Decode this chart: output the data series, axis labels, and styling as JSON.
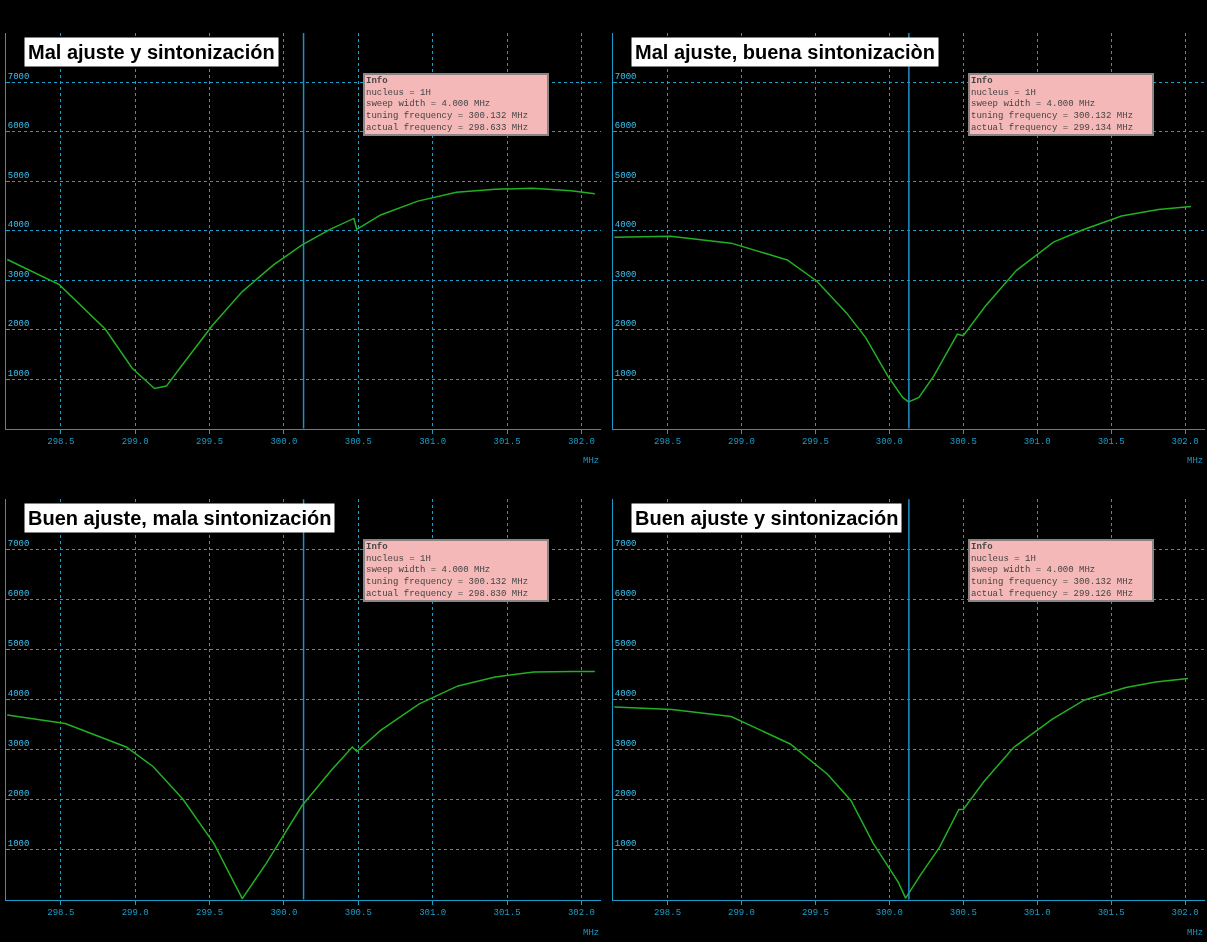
{
  "chart_data": [
    {
      "type": "line",
      "title": "Mal ajuste y sintonización",
      "xlabel": "MHz",
      "x": [
        298.14,
        298.49,
        298.8,
        298.98,
        299.13,
        299.21,
        299.31,
        299.52,
        299.72,
        299.93,
        300.12,
        300.31,
        300.47,
        300.49,
        300.65,
        300.9,
        301.16,
        301.42,
        301.67,
        301.93,
        302.09
      ],
      "series": [
        {
          "color": "#22b022",
          "values": [
            3420,
            2910,
            2010,
            1220,
            810,
            860,
            1260,
            2090,
            2770,
            3310,
            3710,
            4030,
            4250,
            4030,
            4320,
            4600,
            4780,
            4840,
            4860,
            4810,
            4750
          ]
        }
      ],
      "xlim": [
        298.132,
        302.132
      ],
      "ylim": [
        0,
        8000
      ],
      "xticks": [
        {
          "value": 298.5,
          "label": "298.5"
        },
        {
          "value": 299,
          "label": "299.0"
        },
        {
          "value": 299.5,
          "label": "299.5"
        },
        {
          "value": 300,
          "label": "300.0"
        },
        {
          "value": 300.5,
          "label": "300.5"
        },
        {
          "value": 301,
          "label": "301.0"
        },
        {
          "value": 301.5,
          "label": "301.5"
        },
        {
          "value": 302,
          "label": "302.0"
        }
      ],
      "yticks": [
        1000,
        2000,
        3000,
        4000,
        5000,
        6000,
        7000
      ],
      "grid": true,
      "line_style": "solid",
      "ref_lines": [
        {
          "axis": "x",
          "value": 300.132,
          "color": "#1e90c8"
        }
      ],
      "annotations": [
        "Info",
        "nucleus = 1H",
        "sweep width = 4.000 MHz",
        "tuning frequency = 300.132 MHz",
        "actual frequency = 298.633 MHz"
      ]
    },
    {
      "type": "line",
      "title": "Mal ajuste, buena sintonizaciòn",
      "xlabel": "MHz",
      "x": [
        298.14,
        298.52,
        298.93,
        299.31,
        299.51,
        299.71,
        299.84,
        299.99,
        300.09,
        300.13,
        300.2,
        300.3,
        300.46,
        300.5,
        300.65,
        300.86,
        301.11,
        301.31,
        301.57,
        301.82,
        302.04
      ],
      "series": [
        {
          "color": "#22b022",
          "values": [
            3870,
            3890,
            3750,
            3410,
            2980,
            2340,
            1840,
            1060,
            630,
            540,
            630,
            1060,
            1910,
            1880,
            2480,
            3200,
            3770,
            4020,
            4300,
            4430,
            4490
          ]
        }
      ],
      "xlim": [
        298.132,
        302.132
      ],
      "ylim": [
        0,
        8000
      ],
      "xticks": [
        {
          "value": 298.5,
          "label": "298.5"
        },
        {
          "value": 299,
          "label": "299.0"
        },
        {
          "value": 299.5,
          "label": "299.5"
        },
        {
          "value": 300,
          "label": "300.0"
        },
        {
          "value": 300.5,
          "label": "300.5"
        },
        {
          "value": 301,
          "label": "301.0"
        },
        {
          "value": 301.5,
          "label": "301.5"
        },
        {
          "value": 302,
          "label": "302.0"
        }
      ],
      "yticks": [
        1000,
        2000,
        3000,
        4000,
        5000,
        6000,
        7000
      ],
      "grid": true,
      "line_style": "solid",
      "ref_lines": [
        {
          "axis": "x",
          "value": 300.132,
          "color": "#1e90c8"
        }
      ],
      "annotations": [
        "Info",
        "nucleus = 1H",
        "sweep width = 4.000 MHz",
        "tuning frequency = 300.132 MHz",
        "actual frequency = 299.134 MHz"
      ]
    },
    {
      "type": "line",
      "title": "Buen ajuste, mala sintonización",
      "xlabel": "MHz",
      "x": [
        298.14,
        298.53,
        298.94,
        299.12,
        299.32,
        299.53,
        299.72,
        299.88,
        300.12,
        300.32,
        300.46,
        300.49,
        300.65,
        300.91,
        301.17,
        301.42,
        301.68,
        301.94,
        302.09
      ],
      "series": [
        {
          "color": "#22b022",
          "values": [
            3690,
            3520,
            3050,
            2660,
            2010,
            1120,
            20,
            720,
            1870,
            2590,
            3050,
            2960,
            3380,
            3910,
            4270,
            4450,
            4550,
            4560,
            4560
          ]
        }
      ],
      "xlim": [
        298.132,
        302.132
      ],
      "ylim": [
        0,
        8000
      ],
      "xticks": [
        {
          "value": 298.5,
          "label": "298.5"
        },
        {
          "value": 299,
          "label": "299.0"
        },
        {
          "value": 299.5,
          "label": "299.5"
        },
        {
          "value": 300,
          "label": "300.0"
        },
        {
          "value": 300.5,
          "label": "300.5"
        },
        {
          "value": 301,
          "label": "301.0"
        },
        {
          "value": 301.5,
          "label": "301.5"
        },
        {
          "value": 302,
          "label": "302.0"
        }
      ],
      "yticks": [
        1000,
        2000,
        3000,
        4000,
        5000,
        6000,
        7000
      ],
      "grid": true,
      "line_style": "solid",
      "ref_lines": [
        {
          "axis": "x",
          "value": 300.132,
          "color": "#1e90c8"
        }
      ],
      "annotations": [
        "Info",
        "nucleus = 1H",
        "sweep width = 4.000 MHz",
        "tuning frequency = 300.132 MHz",
        "actual frequency = 298.830 MHz"
      ]
    },
    {
      "type": "line",
      "title": "Buen ajuste y sintonización",
      "xlabel": "MHz",
      "x": [
        298.14,
        298.53,
        298.93,
        299.33,
        299.58,
        299.74,
        299.89,
        300.06,
        300.11,
        300.21,
        300.34,
        300.47,
        300.5,
        300.64,
        300.84,
        301.1,
        301.32,
        301.6,
        301.8,
        302.02
      ],
      "series": [
        {
          "color": "#22b022",
          "values": [
            3850,
            3800,
            3660,
            3110,
            2510,
            1980,
            1130,
            350,
            30,
            490,
            1050,
            1800,
            1800,
            2360,
            3040,
            3600,
            3990,
            4240,
            4350,
            4420
          ]
        }
      ],
      "xlim": [
        298.132,
        302.132
      ],
      "ylim": [
        0,
        8000
      ],
      "xticks": [
        {
          "value": 298.5,
          "label": "298.5"
        },
        {
          "value": 299,
          "label": "299.0"
        },
        {
          "value": 299.5,
          "label": "299.5"
        },
        {
          "value": 300,
          "label": "300.0"
        },
        {
          "value": 300.5,
          "label": "300.5"
        },
        {
          "value": 301,
          "label": "301.0"
        },
        {
          "value": 301.5,
          "label": "301.5"
        },
        {
          "value": 302,
          "label": "302.0"
        }
      ],
      "yticks": [
        1000,
        2000,
        3000,
        4000,
        5000,
        6000,
        7000
      ],
      "grid": true,
      "line_style": "solid",
      "ref_lines": [
        {
          "axis": "x",
          "value": 300.132,
          "color": "#1e90c8"
        }
      ],
      "annotations": [
        "Info",
        "nucleus = 1H",
        "sweep width = 4.000 MHz",
        "tuning frequency = 300.132 MHz",
        "actual frequency = 299.126 MHz"
      ]
    }
  ]
}
